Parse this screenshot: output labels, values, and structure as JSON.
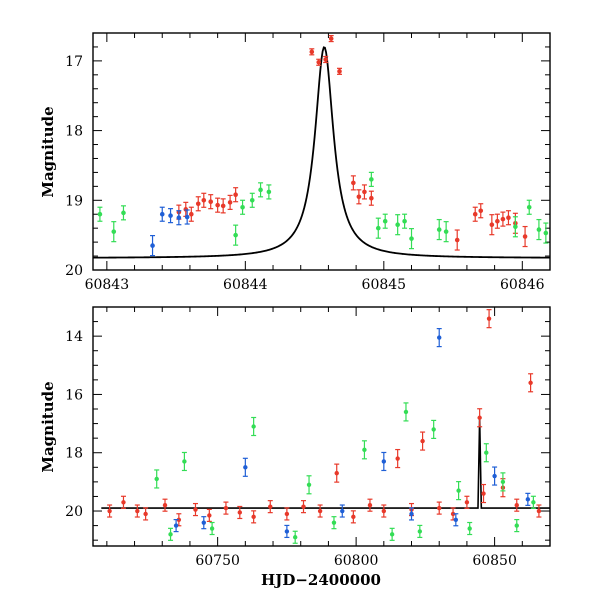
{
  "colors": {
    "red": "#e8392a",
    "blue": "#1f5fd6",
    "green": "#33dd55",
    "model": "#000000"
  },
  "chart_data": [
    {
      "type": "scatter",
      "title": "",
      "xlabel": "",
      "ylabel": "Magnitude",
      "xlim": [
        60842.9,
        60846.2
      ],
      "ylim": [
        20.0,
        16.6
      ],
      "y_inverted": true,
      "grid": false,
      "xticks": [
        "60843",
        "60844",
        "60845",
        "60846"
      ],
      "yticks": [
        "17",
        "18",
        "19",
        "20"
      ],
      "model_curve": {
        "type": "line",
        "peak_x": 60844.57,
        "peak_y": 16.8,
        "baseline_y": 19.83
      },
      "series": [
        {
          "color": "red",
          "points": [
            [
              60843.52,
              19.17
            ],
            [
              60843.57,
              19.13
            ],
            [
              60843.61,
              19.2
            ],
            [
              60843.66,
              19.05
            ],
            [
              60843.7,
              19.0
            ],
            [
              60843.75,
              19.02
            ],
            [
              60843.8,
              19.07
            ],
            [
              60843.84,
              19.08
            ],
            [
              60843.89,
              19.03
            ],
            [
              60843.93,
              18.92
            ],
            [
              60844.48,
              16.87
            ],
            [
              60844.53,
              17.02
            ],
            [
              60844.58,
              16.98
            ],
            [
              60844.62,
              16.68
            ],
            [
              60844.68,
              17.15
            ],
            [
              60844.78,
              18.75
            ],
            [
              60844.82,
              18.95
            ],
            [
              60844.86,
              18.88
            ],
            [
              60844.91,
              18.97
            ],
            [
              60845.53,
              19.57
            ],
            [
              60845.66,
              19.2
            ],
            [
              60845.7,
              19.15
            ],
            [
              60845.78,
              19.35
            ],
            [
              60845.82,
              19.3
            ],
            [
              60845.86,
              19.27
            ],
            [
              60845.9,
              19.25
            ],
            [
              60845.95,
              19.33
            ],
            [
              60846.02,
              19.52
            ]
          ]
        },
        {
          "color": "blue",
          "points": [
            [
              60843.33,
              19.65
            ],
            [
              60843.4,
              19.2
            ],
            [
              60843.46,
              19.22
            ],
            [
              60843.52,
              19.25
            ],
            [
              60843.58,
              19.24
            ]
          ]
        },
        {
          "color": "green",
          "points": [
            [
              60842.95,
              19.2
            ],
            [
              60843.05,
              19.45
            ],
            [
              60843.12,
              19.18
            ],
            [
              60843.93,
              19.5
            ],
            [
              60843.98,
              19.1
            ],
            [
              60844.05,
              19.0
            ],
            [
              60844.11,
              18.85
            ],
            [
              60844.17,
              18.88
            ],
            [
              60844.91,
              18.7
            ],
            [
              60844.96,
              19.4
            ],
            [
              60845.01,
              19.3
            ],
            [
              60845.1,
              19.35
            ],
            [
              60845.15,
              19.3
            ],
            [
              60845.2,
              19.55
            ],
            [
              60845.4,
              19.42
            ],
            [
              60845.45,
              19.45
            ],
            [
              60845.95,
              19.38
            ],
            [
              60846.05,
              19.1
            ],
            [
              60846.12,
              19.42
            ],
            [
              60846.17,
              19.47
            ]
          ]
        }
      ]
    },
    {
      "type": "scatter",
      "title": "",
      "xlabel": "HJD−2400000",
      "ylabel": "Magnitude",
      "xlim": [
        60705,
        60870
      ],
      "ylim": [
        21.2,
        13.0
      ],
      "y_inverted": true,
      "grid": false,
      "xticks": [
        "60750",
        "60800",
        "60850"
      ],
      "yticks": [
        "14",
        "16",
        "18",
        "20"
      ],
      "model_curve": {
        "type": "line",
        "baseline_y": 19.9,
        "spike_x": 60844.6,
        "spike_y": 16.8
      },
      "series": [
        {
          "color": "red",
          "points": [
            [
              60711,
              20.0
            ],
            [
              60716,
              19.7
            ],
            [
              60721,
              20.0
            ],
            [
              60724,
              20.1
            ],
            [
              60731,
              19.8
            ],
            [
              60736,
              20.3
            ],
            [
              60742,
              19.95
            ],
            [
              60747,
              20.15
            ],
            [
              60753,
              19.9
            ],
            [
              60758,
              20.05
            ],
            [
              60763,
              20.2
            ],
            [
              60769,
              19.85
            ],
            [
              60775,
              20.1
            ],
            [
              60781,
              19.85
            ],
            [
              60787,
              20.0
            ],
            [
              60793,
              18.7
            ],
            [
              60799,
              20.2
            ],
            [
              60805,
              19.8
            ],
            [
              60810,
              20.0
            ],
            [
              60815,
              18.2
            ],
            [
              60820,
              19.95
            ],
            [
              60824,
              17.6
            ],
            [
              60830,
              19.9
            ],
            [
              60835,
              20.1
            ],
            [
              60840,
              19.7
            ],
            [
              60844.6,
              16.8
            ],
            [
              60846,
              19.4
            ],
            [
              60848,
              13.4
            ],
            [
              60853,
              19.2
            ],
            [
              60858,
              19.8
            ],
            [
              60863,
              15.6
            ],
            [
              60866,
              20.0
            ]
          ]
        },
        {
          "color": "blue",
          "points": [
            [
              60735,
              20.5
            ],
            [
              60745,
              20.4
            ],
            [
              60760,
              18.5
            ],
            [
              60775,
              20.7
            ],
            [
              60795,
              20.0
            ],
            [
              60810,
              18.3
            ],
            [
              60820,
              20.1
            ],
            [
              60830,
              14.05
            ],
            [
              60836,
              20.3
            ],
            [
              60850,
              18.8
            ],
            [
              60862,
              19.6
            ]
          ]
        },
        {
          "color": "green",
          "points": [
            [
              60728,
              18.9
            ],
            [
              60733,
              20.8
            ],
            [
              60738,
              18.3
            ],
            [
              60748,
              20.6
            ],
            [
              60763,
              17.1
            ],
            [
              60778,
              20.9
            ],
            [
              60783,
              19.1
            ],
            [
              60792,
              20.4
            ],
            [
              60803,
              17.9
            ],
            [
              60813,
              20.8
            ],
            [
              60818,
              16.6
            ],
            [
              60823,
              20.7
            ],
            [
              60828,
              17.2
            ],
            [
              60837,
              19.3
            ],
            [
              60841,
              20.6
            ],
            [
              60847,
              18.0
            ],
            [
              60853,
              19.0
            ],
            [
              60858,
              20.5
            ],
            [
              60864,
              19.7
            ]
          ]
        }
      ]
    }
  ]
}
